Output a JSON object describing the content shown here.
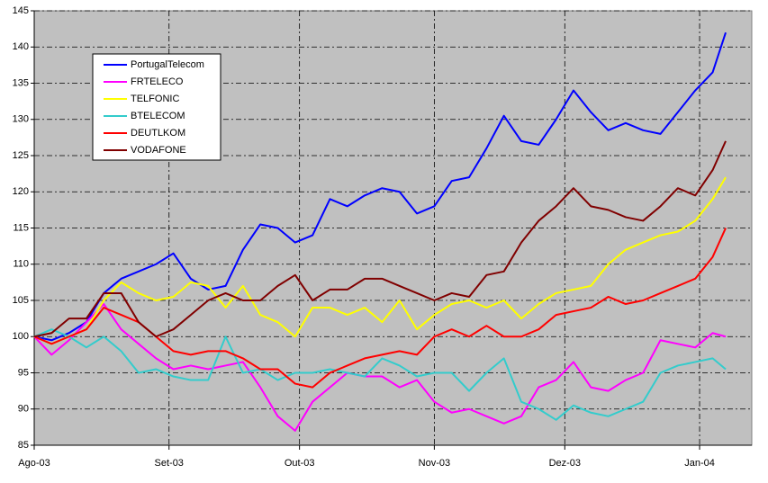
{
  "chart_data": {
    "type": "line",
    "x": [
      0,
      4,
      8,
      12,
      16,
      20,
      24,
      28,
      32,
      36,
      40,
      44,
      48,
      52,
      56,
      60,
      64,
      68,
      72,
      76,
      80,
      84,
      88,
      92,
      96,
      100,
      104,
      108,
      112,
      116,
      120,
      124,
      128,
      132,
      136,
      140,
      144,
      148,
      152,
      156,
      159
    ],
    "xlim": [
      0,
      165
    ],
    "xticks": [
      {
        "value": 0,
        "label": "Ago-03"
      },
      {
        "value": 31,
        "label": "Set-03"
      },
      {
        "value": 61,
        "label": "Out-03"
      },
      {
        "value": 92,
        "label": "Nov-03"
      },
      {
        "value": 122,
        "label": "Dez-03"
      },
      {
        "value": 153,
        "label": "Jan-04"
      }
    ],
    "ylim": [
      85,
      145
    ],
    "yticks": [
      85,
      90,
      95,
      100,
      105,
      110,
      115,
      120,
      125,
      130,
      135,
      140,
      145
    ],
    "grid": true,
    "legend": "upper left",
    "series": [
      {
        "name": "PortugalTelecom",
        "color": "#0000ff",
        "values": [
          100,
          99.5,
          100.5,
          102,
          106,
          108,
          109,
          110,
          111.5,
          108,
          106.5,
          107,
          112,
          115.5,
          115,
          113,
          114,
          119,
          118,
          119.5,
          120.5,
          120,
          117,
          118,
          121.5,
          122,
          126,
          130.5,
          127,
          126.5,
          130,
          134,
          131,
          128.5,
          129.5,
          128.5,
          128,
          131,
          134,
          136.5,
          142
        ]
      },
      {
        "name": "FRTELECO",
        "color": "#ff00ff",
        "values": [
          100,
          97.5,
          99.5,
          102,
          104.5,
          101,
          99,
          97,
          95.5,
          96,
          95.5,
          96,
          96.5,
          93,
          89,
          87,
          91,
          93,
          95,
          94.5,
          94.5,
          93,
          94,
          91,
          89.5,
          90,
          89,
          88,
          89,
          93,
          94,
          96.5,
          93,
          92.5,
          94,
          95,
          99.5,
          99,
          98.5,
          100.5,
          100
        ]
      },
      {
        "name": "TELFONIC",
        "color": "#ffff00",
        "values": [
          100,
          99,
          100,
          101,
          105,
          107.5,
          106,
          105,
          105.5,
          107.5,
          107,
          104,
          107,
          103,
          102,
          100,
          104,
          104,
          103,
          104,
          102,
          105,
          101,
          103,
          104.5,
          105,
          104,
          105,
          102.5,
          104.5,
          106,
          106.5,
          107,
          110,
          112,
          113,
          114,
          114.5,
          116,
          119,
          122
        ]
      },
      {
        "name": "BTELECOM",
        "color": "#33cccc",
        "values": [
          100,
          101,
          100,
          98.5,
          100,
          98,
          95,
          95.5,
          94.5,
          94,
          94,
          100,
          95,
          95.5,
          94,
          95,
          95,
          95.5,
          95,
          94.5,
          97,
          96,
          94.5,
          95,
          95,
          92.5,
          95,
          97,
          91,
          90,
          88.5,
          90.5,
          89.5,
          89,
          90,
          91,
          95,
          96,
          96.5,
          97,
          95.5
        ]
      },
      {
        "name": "DEUTLKOM",
        "color": "#ff0000",
        "values": [
          100,
          99,
          100,
          101,
          104,
          103,
          102,
          100,
          98,
          97.5,
          98,
          98,
          97,
          95.5,
          95.5,
          93.5,
          93,
          95,
          96,
          97,
          97.5,
          98,
          97.5,
          100,
          101,
          100,
          101.5,
          100,
          100,
          101,
          103,
          103.5,
          104,
          105.5,
          104.5,
          105,
          106,
          107,
          108,
          111,
          115
        ]
      },
      {
        "name": "VODAFONE",
        "color": "#800000",
        "values": [
          100,
          100.5,
          102.5,
          102.5,
          106,
          106,
          102,
          100,
          101,
          103,
          105,
          106,
          105,
          105,
          107,
          108.5,
          105,
          106.5,
          106.5,
          108,
          108,
          107,
          106,
          105,
          106,
          105.5,
          108.5,
          109,
          113,
          116,
          118,
          120.5,
          118,
          117.5,
          116.5,
          116,
          118,
          120.5,
          119.5,
          123,
          127
        ]
      }
    ]
  }
}
